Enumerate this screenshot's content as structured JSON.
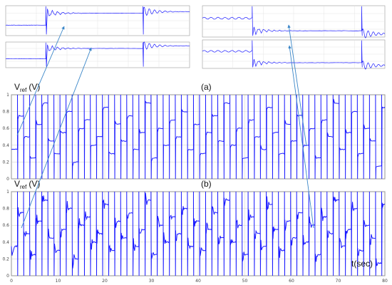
{
  "labels": {
    "vref_main": "V",
    "vref_sub": "ref",
    "vref_unit": "(V)",
    "panel_a": "(a)",
    "panel_b": "(b)",
    "time_axis": "t(sec)"
  },
  "colors": {
    "trace": "#1a1aff",
    "arrow": "#3a86c8",
    "grid": "#bfbfbf",
    "frame": "#555555"
  },
  "chart_data": [
    {
      "type": "line",
      "name": "panel-a",
      "title": "(a)",
      "ylabel": "Vref (V)",
      "xlim": [
        0,
        80
      ],
      "ylim": [
        0,
        1
      ],
      "xticks": [
        "0",
        "10",
        "20",
        "30",
        "40",
        "50",
        "60",
        "70",
        "80"
      ],
      "yticks": [
        "0",
        "0.2",
        "0.4",
        "0.6",
        "0.8",
        "1"
      ],
      "grid": true,
      "step_times": [
        0,
        1.3,
        2.6,
        3.9,
        5.2,
        6.5,
        7.8,
        9.1,
        10.4,
        11.7,
        13,
        14.3,
        15.6,
        16.9,
        18.2,
        19.5,
        20.8,
        22.1,
        23.4,
        24.7,
        26,
        27.3,
        28.6,
        29.9,
        31.2,
        32.5,
        33.8,
        35.1,
        36.4,
        37.7,
        39,
        40.3,
        41.6,
        42.9,
        44.2,
        45.5,
        46.8,
        48.1,
        49.4,
        50.7,
        52,
        53.3,
        54.6,
        55.9,
        57.2,
        58.5,
        59.8,
        61.1,
        62.4,
        63.7,
        65,
        66.3,
        67.6,
        68.9,
        70.2,
        71.5,
        72.8,
        74.1,
        75.4,
        76.7,
        78,
        79.3
      ],
      "step_values": [
        0.35,
        0.75,
        0.5,
        0.25,
        0.65,
        0.9,
        0.45,
        0.3,
        0.55,
        0.8,
        0.2,
        0.6,
        0.7,
        0.4,
        0.5,
        0.85,
        0.3,
        0.65,
        0.45,
        0.75,
        0.35,
        0.55,
        0.9,
        0.25,
        0.6,
        0.4,
        0.7,
        0.5,
        0.8,
        0.35,
        0.65,
        0.3,
        0.55,
        0.75,
        0.45,
        0.9,
        0.4,
        0.6,
        0.25,
        0.7,
        0.5,
        0.35,
        0.85,
        0.55,
        0.3,
        0.65,
        0.45,
        0.75,
        0.4,
        0.6,
        0.25,
        0.7,
        0.5,
        0.9,
        0.35,
        0.55,
        0.8,
        0.3,
        0.6,
        0.45,
        0.15,
        0.85
      ]
    },
    {
      "type": "line",
      "name": "panel-b",
      "title": "(b)",
      "xlabel": "t(sec)",
      "ylabel": "Vref (V)",
      "xlim": [
        0,
        80
      ],
      "ylim": [
        0,
        1
      ],
      "xticks": [
        "0",
        "10",
        "20",
        "30",
        "40",
        "50",
        "60",
        "70",
        "80"
      ],
      "yticks": [
        "0",
        "0.2",
        "0.4",
        "0.6",
        "0.8",
        "1"
      ],
      "grid": true,
      "step_times": [
        0,
        1.3,
        2.6,
        3.9,
        5.2,
        6.5,
        7.8,
        9.1,
        10.4,
        11.7,
        13,
        14.3,
        15.6,
        16.9,
        18.2,
        19.5,
        20.8,
        22.1,
        23.4,
        24.7,
        26,
        27.3,
        28.6,
        29.9,
        31.2,
        32.5,
        33.8,
        35.1,
        36.4,
        37.7,
        39,
        40.3,
        41.6,
        42.9,
        44.2,
        45.5,
        46.8,
        48.1,
        49.4,
        50.7,
        52,
        53.3,
        54.6,
        55.9,
        57.2,
        58.5,
        59.8,
        61.1,
        62.4,
        63.7,
        65,
        66.3,
        67.6,
        68.9,
        70.2,
        71.5,
        72.8,
        74.1,
        75.4,
        76.7,
        78,
        79.3
      ],
      "step_values": [
        0.35,
        0.75,
        0.5,
        0.25,
        0.65,
        0.9,
        0.45,
        0.3,
        0.55,
        0.8,
        0.2,
        0.6,
        0.7,
        0.4,
        0.5,
        0.85,
        0.3,
        0.65,
        0.45,
        0.75,
        0.35,
        0.55,
        0.9,
        0.25,
        0.6,
        0.4,
        0.7,
        0.5,
        0.8,
        0.35,
        0.65,
        0.3,
        0.55,
        0.75,
        0.45,
        0.9,
        0.4,
        0.6,
        0.25,
        0.7,
        0.5,
        0.35,
        0.85,
        0.55,
        0.3,
        0.65,
        0.45,
        0.75,
        0.4,
        0.6,
        0.25,
        0.7,
        0.5,
        0.9,
        0.35,
        0.55,
        0.8,
        0.3,
        0.6,
        0.45,
        0.15,
        0.85
      ]
    },
    {
      "type": "line",
      "name": "zoom-a-left",
      "ylim": [
        0,
        1
      ],
      "step_times": [
        0,
        1.2,
        4.1
      ],
      "step_values": [
        0.35,
        0.75,
        0.8
      ]
    },
    {
      "type": "line",
      "name": "zoom-b-left",
      "ylim": [
        0,
        1
      ],
      "step_times": [
        0,
        1.2,
        4.1
      ],
      "step_values": [
        0.35,
        0.75,
        0.85
      ]
    },
    {
      "type": "line",
      "name": "zoom-a-right",
      "ylim": [
        0,
        1
      ],
      "step_times": [
        0,
        1.5,
        4.8
      ],
      "step_values": [
        0.6,
        0.2,
        0.1
      ]
    },
    {
      "type": "line",
      "name": "zoom-b-right",
      "ylim": [
        0,
        1
      ],
      "step_times": [
        0,
        1.5,
        4.8
      ],
      "step_values": [
        0.6,
        0.2,
        0.1
      ]
    }
  ]
}
